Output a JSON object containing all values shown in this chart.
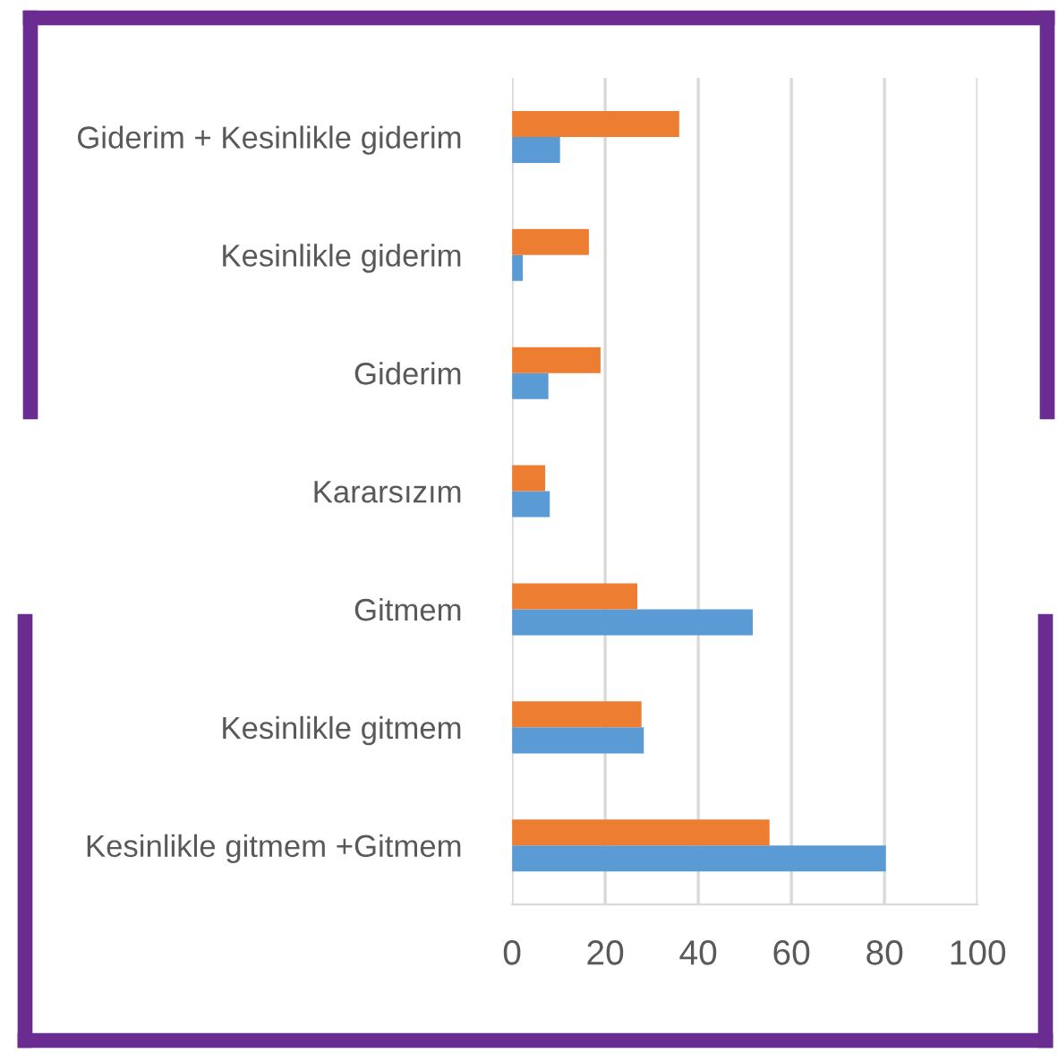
{
  "chart_data": {
    "type": "bar",
    "orientation": "horizontal",
    "categories": [
      "Giderim + Kesinlikle giderim",
      "Kesinlikle giderim",
      "Giderim",
      "Kararsızım",
      "Gitmem",
      "Kesinlikle gitmem",
      "Kesinlikle gitmem +Gitmem"
    ],
    "series": [
      {
        "color": "#5b9bd5",
        "values": [
          10.3,
          2.3,
          7.8,
          8.1,
          51.7,
          28.3,
          80.3
        ]
      },
      {
        "color": "#ed7d31",
        "values": [
          35.9,
          16.5,
          19,
          7.1,
          26.9,
          27.8,
          55.3
        ]
      }
    ],
    "xlim": [
      0,
      100
    ],
    "xticks": [
      0,
      20,
      40,
      60,
      80,
      100
    ],
    "grid": "x",
    "legend": false
  }
}
